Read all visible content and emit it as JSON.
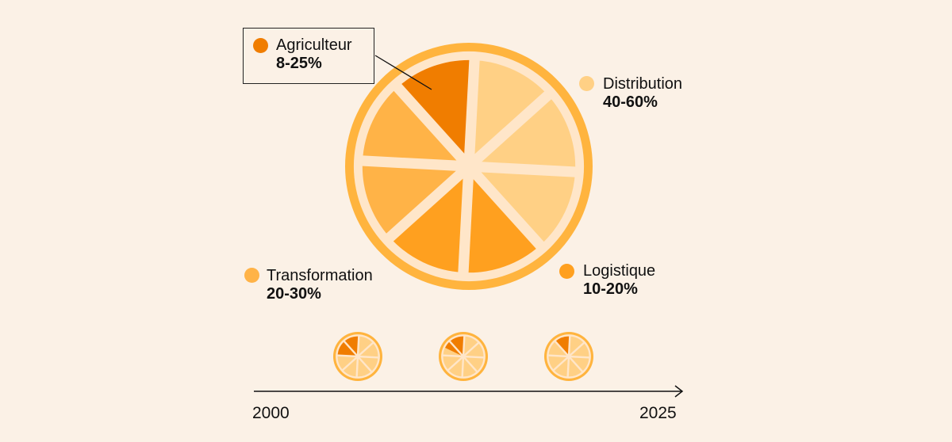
{
  "chart_data": {
    "type": "pie",
    "title": "",
    "segments_per_orange": 8,
    "colors": {
      "background": "#FBF1E6",
      "rind": "#FFB43E",
      "pith": "#FFE6C9",
      "agriculteur": "#F07D00",
      "distribution": "#FFD085",
      "transformation": "#FFB347",
      "logistique": "#FFA01F"
    },
    "categories": [
      {
        "key": "agriculteur",
        "name": "Agriculteur",
        "range": "8-25%",
        "slices": 1
      },
      {
        "key": "distribution",
        "name": "Distribution",
        "range": "40-60%",
        "slices": 3
      },
      {
        "key": "logistique",
        "name": "Logistique",
        "range": "10-20%",
        "slices": 2
      },
      {
        "key": "transformation",
        "name": "Transformation",
        "range": "20-30%",
        "slices": 2
      }
    ],
    "timeline": {
      "start_label": "2000",
      "end_label": "2025",
      "small_oranges_farmer_slices": [
        2,
        1.5,
        1
      ]
    }
  }
}
